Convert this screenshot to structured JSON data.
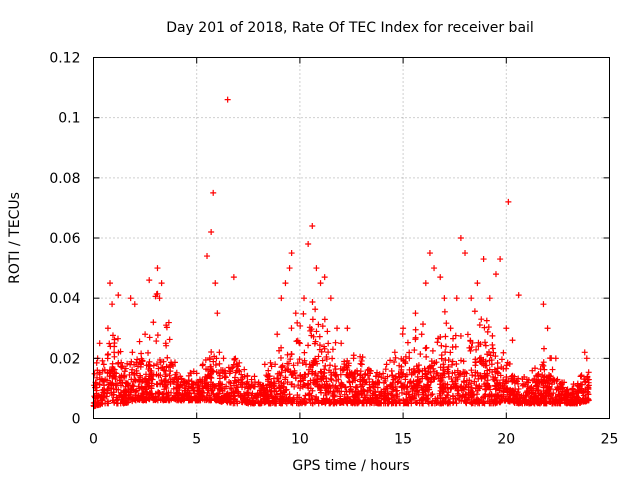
{
  "chart_data": {
    "type": "scatter",
    "title": "Day 201 of 2018, Rate Of TEC Index for receiver bail",
    "xlabel": "GPS time / hours",
    "ylabel": "ROTI / TECUs",
    "xlim": [
      0,
      25
    ],
    "ylim": [
      0,
      0.12
    ],
    "xticks": [
      0,
      5,
      10,
      15,
      20,
      25
    ],
    "yticks": [
      0,
      0.02,
      0.04,
      0.06,
      0.08,
      0.1,
      0.12
    ],
    "xtick_labels": [
      "0",
      "5",
      "10",
      "15",
      "20",
      "25"
    ],
    "ytick_labels": [
      "0",
      "0.02",
      "0.04",
      "0.06",
      "0.08",
      "0.1",
      "0.12"
    ],
    "grid": true,
    "marker": "+",
    "color": "#ff0000",
    "series": [
      {
        "name": "ROTI",
        "x": [
          0.1,
          0.2,
          0.3,
          0.5,
          0.7,
          0.8,
          0.9,
          1.0,
          1.1,
          1.2,
          1.4,
          1.6,
          1.8,
          2.0,
          2.1,
          2.3,
          2.5,
          2.7,
          2.9,
          3.1,
          3.2,
          3.3,
          3.5,
          3.6,
          3.8,
          4.0,
          4.2,
          4.5,
          4.8,
          5.0,
          5.3,
          5.5,
          5.7,
          5.8,
          5.9,
          6.0,
          6.1,
          6.3,
          6.5,
          6.6,
          6.8,
          7.0,
          7.2,
          7.5,
          7.8,
          8.0,
          8.3,
          8.6,
          8.9,
          9.1,
          9.3,
          9.5,
          9.6,
          9.8,
          10.0,
          10.2,
          10.4,
          10.6,
          10.8,
          11.0,
          11.2,
          11.5,
          11.8,
          12.0,
          12.3,
          12.6,
          13.0,
          13.4,
          13.8,
          14.2,
          14.6,
          15.0,
          15.3,
          15.6,
          15.9,
          16.1,
          16.3,
          16.5,
          16.8,
          17.0,
          17.3,
          17.6,
          17.8,
          18.0,
          18.3,
          18.6,
          18.9,
          19.2,
          19.5,
          19.7,
          20.0,
          20.1,
          20.3,
          20.6,
          21.0,
          21.4,
          21.8,
          22.0,
          22.4,
          22.8,
          23.2,
          23.6,
          23.8,
          23.9
        ],
        "y": [
          0.012,
          0.02,
          0.025,
          0.018,
          0.03,
          0.045,
          0.038,
          0.022,
          0.015,
          0.041,
          0.012,
          0.009,
          0.04,
          0.038,
          0.015,
          0.018,
          0.028,
          0.046,
          0.032,
          0.05,
          0.04,
          0.045,
          0.025,
          0.012,
          0.018,
          0.01,
          0.014,
          0.012,
          0.01,
          0.015,
          0.018,
          0.054,
          0.062,
          0.075,
          0.045,
          0.035,
          0.022,
          0.02,
          0.106,
          0.015,
          0.047,
          0.016,
          0.012,
          0.01,
          0.014,
          0.012,
          0.018,
          0.011,
          0.028,
          0.04,
          0.045,
          0.05,
          0.055,
          0.035,
          0.025,
          0.04,
          0.058,
          0.064,
          0.05,
          0.045,
          0.047,
          0.04,
          0.03,
          0.025,
          0.03,
          0.02,
          0.018,
          0.015,
          0.012,
          0.018,
          0.022,
          0.03,
          0.02,
          0.035,
          0.028,
          0.045,
          0.055,
          0.05,
          0.047,
          0.04,
          0.03,
          0.04,
          0.06,
          0.055,
          0.04,
          0.045,
          0.053,
          0.04,
          0.048,
          0.053,
          0.03,
          0.072,
          0.026,
          0.041,
          0.013,
          0.012,
          0.038,
          0.03,
          0.02,
          0.012,
          0.01,
          0.014,
          0.022,
          0.02
        ]
      }
    ],
    "density_profile": {
      "hours": [
        0,
        0.5,
        1,
        1.5,
        2,
        2.5,
        3,
        3.5,
        4,
        4.5,
        5,
        5.5,
        6,
        6.5,
        7,
        7.5,
        8,
        8.5,
        9,
        9.5,
        10,
        10.5,
        11,
        11.5,
        12,
        12.5,
        13,
        13.5,
        14,
        14.5,
        15,
        15.5,
        16,
        16.5,
        17,
        17.5,
        18,
        18.5,
        19,
        19.5,
        20,
        20.5,
        21,
        21.5,
        22,
        22.5,
        23,
        23.5,
        24
      ],
      "upper": [
        0.022,
        0.026,
        0.04,
        0.02,
        0.035,
        0.02,
        0.045,
        0.04,
        0.02,
        0.016,
        0.016,
        0.03,
        0.025,
        0.018,
        0.03,
        0.016,
        0.015,
        0.02,
        0.028,
        0.035,
        0.04,
        0.045,
        0.04,
        0.035,
        0.028,
        0.025,
        0.022,
        0.018,
        0.018,
        0.02,
        0.03,
        0.035,
        0.04,
        0.038,
        0.036,
        0.035,
        0.04,
        0.04,
        0.042,
        0.03,
        0.025,
        0.015,
        0.015,
        0.025,
        0.025,
        0.015,
        0.012,
        0.014,
        0.018
      ],
      "lower": [
        0.004,
        0.005,
        0.005,
        0.005,
        0.006,
        0.006,
        0.006,
        0.006,
        0.006,
        0.006,
        0.006,
        0.006,
        0.006,
        0.005,
        0.005,
        0.005,
        0.005,
        0.005,
        0.005,
        0.005,
        0.005,
        0.005,
        0.005,
        0.005,
        0.005,
        0.005,
        0.005,
        0.005,
        0.005,
        0.005,
        0.005,
        0.005,
        0.005,
        0.005,
        0.005,
        0.005,
        0.005,
        0.005,
        0.005,
        0.005,
        0.006,
        0.005,
        0.005,
        0.005,
        0.005,
        0.005,
        0.005,
        0.005,
        0.006
      ]
    }
  }
}
